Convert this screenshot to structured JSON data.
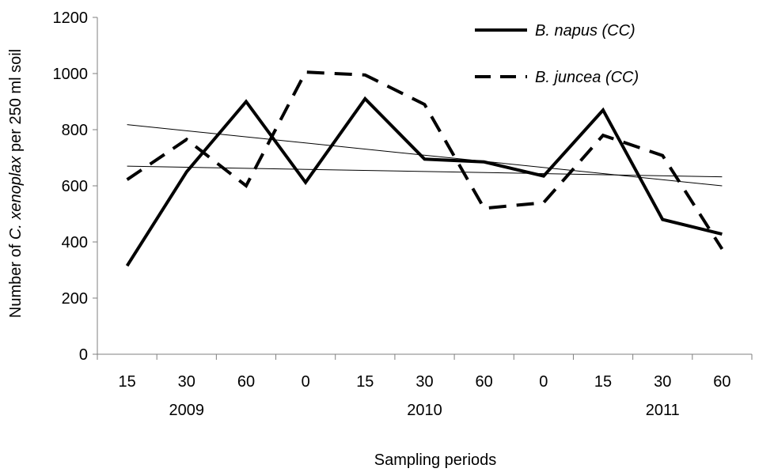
{
  "chart_data": {
    "type": "line",
    "xlabel": "Sampling periods",
    "ylabel_parts": {
      "pre": "Number of ",
      "species": "C. xenoplax",
      "post": " per 250 ml soil"
    },
    "categories": [
      "15",
      "30",
      "60",
      "0",
      "15",
      "30",
      "60",
      "0",
      "15",
      "30",
      "60"
    ],
    "year_labels": [
      {
        "label": "2009",
        "category_index": 1
      },
      {
        "label": "2010",
        "category_index": 5
      },
      {
        "label": "2011",
        "category_index": 9
      }
    ],
    "ylim": [
      0,
      1200
    ],
    "yticks": [
      0,
      200,
      400,
      600,
      800,
      1000,
      1200
    ],
    "grid": false,
    "legend_position": "top-right",
    "series": [
      {
        "name": "B. napus (CC)",
        "style": "solid",
        "color": "#000000",
        "values": [
          315,
          650,
          900,
          612,
          910,
          695,
          685,
          635,
          870,
          480,
          428
        ]
      },
      {
        "name": "B. juncea (CC)",
        "style": "dashed",
        "color": "#000000",
        "values": [
          622,
          765,
          600,
          1005,
          995,
          890,
          520,
          540,
          780,
          708,
          375
        ]
      }
    ],
    "trendlines": [
      {
        "style": "thin",
        "color": "#000000",
        "start": 818,
        "end": 600
      },
      {
        "style": "thin",
        "color": "#000000",
        "start": 670,
        "end": 632
      }
    ]
  }
}
